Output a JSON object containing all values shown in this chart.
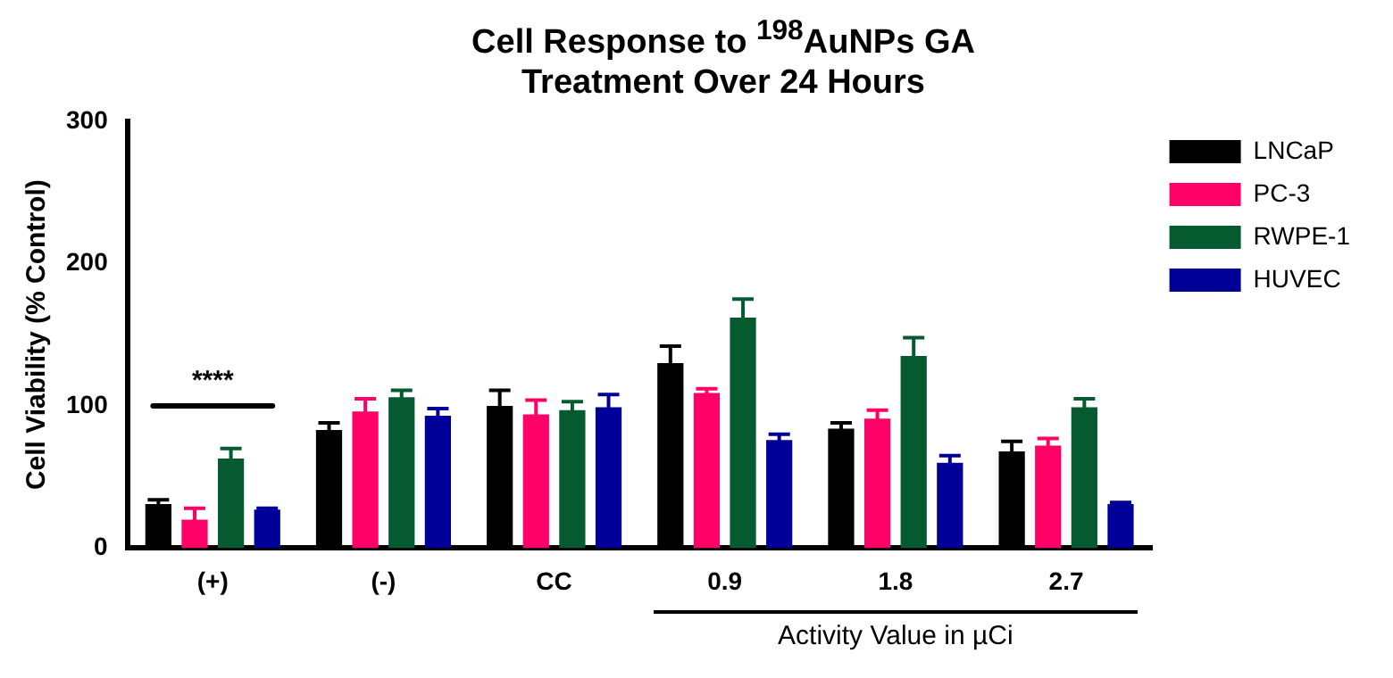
{
  "chart_data": {
    "type": "bar",
    "title": "Cell Response to $^{198}$AuNPs GA Treatment Over 24 Hours",
    "ylabel": "Cell Viability (% Control)",
    "categories": [
      "(+)",
      "(-)",
      "CC",
      "0.9",
      "1.8",
      "2.7"
    ],
    "series": [
      {
        "name": "LNCaP",
        "color": "#000000",
        "values": [
          31,
          83,
          100,
          130,
          84,
          68
        ],
        "errors": [
          3,
          5,
          11,
          12,
          4,
          7
        ]
      },
      {
        "name": "PC-3",
        "color": "#ff0066",
        "values": [
          20,
          96,
          94,
          109,
          91,
          72
        ],
        "errors": [
          8,
          9,
          10,
          3,
          6,
          5
        ]
      },
      {
        "name": "RWPE-1",
        "color": "#055a30",
        "values": [
          63,
          106,
          97,
          162,
          135,
          99
        ],
        "errors": [
          7,
          5,
          6,
          13,
          13,
          6
        ]
      },
      {
        "name": "HUVEC",
        "color": "#000099",
        "values": [
          27,
          93,
          99,
          76,
          60,
          31
        ],
        "errors": [
          1,
          5,
          9,
          4,
          5,
          1
        ]
      }
    ],
    "ylim": [
      0,
      300
    ],
    "yticks": [
      0,
      100,
      200,
      300
    ],
    "grid": false,
    "legend": "top right",
    "annotations": [
      "****",
      "Activity Value in µCi"
    ]
  }
}
